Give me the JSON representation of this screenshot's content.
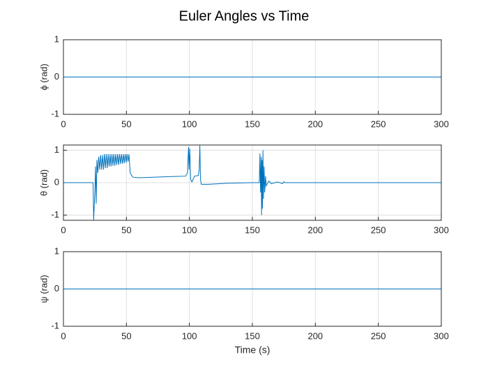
{
  "title": "Euler Angles vs Time",
  "chart_data": [
    {
      "type": "line",
      "ylabel": "ϕ (rad)",
      "xlim": [
        0,
        300
      ],
      "ylim": [
        -1,
        1
      ],
      "xticks": [
        0,
        50,
        100,
        150,
        200,
        250,
        300
      ],
      "yticks": [
        -1,
        0,
        1
      ],
      "grid": true,
      "x": [
        0,
        300
      ],
      "series": [
        {
          "color": "#0072bd",
          "values": [
            0,
            0
          ]
        }
      ]
    },
    {
      "type": "line",
      "ylabel": "θ (rad)",
      "xlim": [
        0,
        300
      ],
      "ylim": [
        -1.16,
        1.16
      ],
      "xticks": [
        0,
        50,
        100,
        150,
        200,
        250,
        300
      ],
      "yticks": [
        -1,
        0,
        1
      ],
      "grid": true,
      "x": [
        0,
        23.5,
        24,
        25,
        25.5,
        26,
        26.6,
        27.3,
        28,
        28.8,
        29.5,
        30.3,
        31,
        31.8,
        32.5,
        33.3,
        34,
        34.8,
        35.5,
        36.3,
        37,
        37.8,
        38.5,
        39.3,
        40,
        40.8,
        41.5,
        42.3,
        43,
        43.8,
        44.5,
        45.3,
        46,
        46.8,
        47.5,
        48.3,
        49,
        49.8,
        50.5,
        51.3,
        52,
        53,
        55,
        60,
        80,
        97,
        98.5,
        99.3,
        99.8,
        100.3,
        101,
        102,
        104,
        107,
        107.8,
        108.3,
        108.8,
        109.5,
        115,
        130,
        150,
        155.5,
        156,
        156.5,
        157,
        157.3,
        157.7,
        158,
        158.4,
        158.8,
        159.3,
        159.8,
        160.5,
        161,
        163,
        165,
        170,
        174,
        175,
        176,
        300
      ],
      "series": [
        {
          "color": "#0072bd",
          "values": [
            0,
            0,
            -1.15,
            -0.2,
            0.5,
            -0.65,
            0.7,
            0.3,
            0.8,
            0.4,
            0.85,
            0.4,
            0.85,
            0.4,
            0.88,
            0.45,
            0.88,
            0.45,
            0.88,
            0.5,
            0.88,
            0.5,
            0.88,
            0.52,
            0.88,
            0.52,
            0.88,
            0.55,
            0.88,
            0.55,
            0.88,
            0.58,
            0.88,
            0.58,
            0.88,
            0.6,
            0.88,
            0.62,
            0.88,
            0.65,
            0.88,
            0.3,
            0.17,
            0.15,
            0.18,
            0.2,
            0.3,
            1.1,
            0.4,
            1.05,
            0.1,
            0.02,
            0.2,
            0.22,
            0.4,
            1.15,
            0.1,
            -0.05,
            -0.05,
            -0.02,
            0,
            0,
            0.9,
            -0.3,
            0.8,
            -1.0,
            0.7,
            -0.8,
            1.0,
            -0.5,
            0.5,
            -0.3,
            0.2,
            -0.1,
            0.05,
            -0.03,
            0.02,
            -0.03,
            0.03,
            0,
            0
          ]
        }
      ]
    },
    {
      "type": "line",
      "ylabel": "ψ (rad)",
      "xlabel": "Time (s)",
      "xlim": [
        0,
        300
      ],
      "ylim": [
        -1,
        1
      ],
      "xticks": [
        0,
        50,
        100,
        150,
        200,
        250,
        300
      ],
      "yticks": [
        -1,
        0,
        1
      ],
      "grid": true,
      "x": [
        0,
        300
      ],
      "series": [
        {
          "color": "#0072bd",
          "values": [
            0,
            0
          ]
        }
      ]
    }
  ]
}
